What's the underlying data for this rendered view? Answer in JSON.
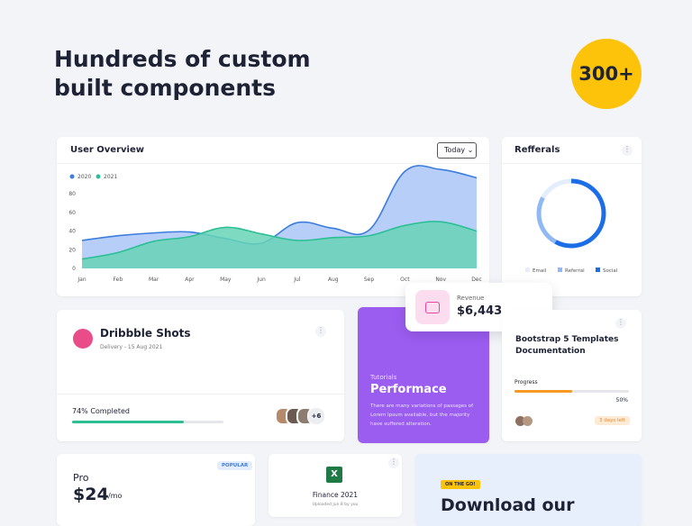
{
  "header": {
    "title_lines": [
      "Hundreds of custom",
      "built components"
    ],
    "badge": "300+"
  },
  "user_overview": {
    "title": "User Overview",
    "dropdown": "Today",
    "chart_data": {
      "type": "area",
      "categories": [
        "Jan",
        "Feb",
        "Mar",
        "Apr",
        "May",
        "Jun",
        "Jul",
        "Aug",
        "Sep",
        "Oct",
        "Nov",
        "Dec"
      ],
      "series": [
        {
          "name": "2020",
          "color": "#3b7ddd",
          "fill": "#a9c5f7",
          "values": [
            30,
            35,
            38,
            39,
            32,
            27,
            49,
            43,
            41,
            104,
            106,
            97
          ]
        },
        {
          "name": "2021",
          "color": "#2bbf93",
          "fill": "#67d3b6",
          "values": [
            10,
            17,
            29,
            34,
            44,
            37,
            30,
            33,
            35,
            46,
            50,
            40
          ]
        }
      ],
      "ylim": [
        0,
        110
      ],
      "yticks": [
        0,
        20,
        40,
        60,
        80
      ],
      "grid": false
    }
  },
  "referrals": {
    "title": "Refferals",
    "chart_data": {
      "type": "donut",
      "categories": [
        "Email",
        "Referral",
        "Social"
      ],
      "values": [
        17,
        25,
        58
      ],
      "colors": [
        "#e3edfd",
        "#90b8f4",
        "#1c6ee6"
      ]
    }
  },
  "revenue": {
    "label": "Revenue",
    "value": "$6,443"
  },
  "dribbble": {
    "title": "Dribbble Shots",
    "delivery": "Delivery - 15 Aug 2021",
    "progress": {
      "label": "74% Completed",
      "value": 74
    },
    "more_avatars": "+6"
  },
  "tutorial": {
    "kicker": "Tutorials",
    "title": "Performace",
    "text": "There are many variations of passages of Lorem Ipsum available, but the majority have suffered alteration."
  },
  "bootstrap": {
    "title": "Bootstrap 5 Templates Documentation",
    "progress_label": "Progress",
    "progress": {
      "label": "50%",
      "value": 50
    },
    "due": "3 days left"
  },
  "pricing": {
    "badge": "POPULAR",
    "plan": "Pro",
    "price": "$24",
    "period": "/mo"
  },
  "file": {
    "name": "Finance 2021",
    "meta": "Uploaded Jun 8 by you"
  },
  "download": {
    "badge": "ON THE GO!",
    "title": "Download our"
  }
}
